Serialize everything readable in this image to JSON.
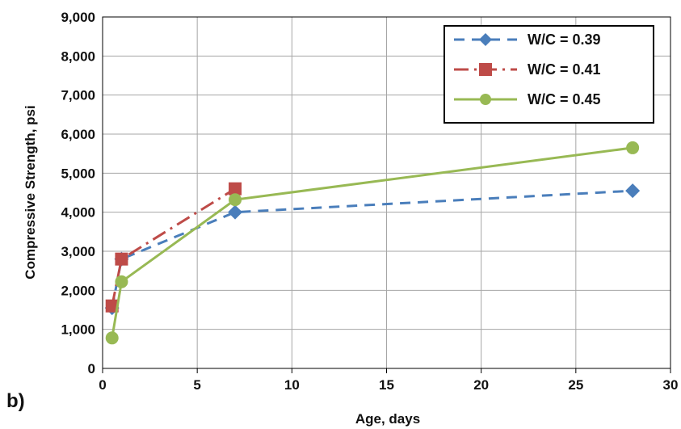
{
  "chart_data": {
    "type": "line",
    "panel_label": "b)",
    "xlabel": "Age, days",
    "ylabel": "Compressive Strength, psi",
    "xlim": [
      0,
      30
    ],
    "ylim": [
      0,
      9000
    ],
    "x_ticks": [
      {
        "value": 0,
        "label": "0"
      },
      {
        "value": 5,
        "label": "5"
      },
      {
        "value": 10,
        "label": "10"
      },
      {
        "value": 15,
        "label": "15"
      },
      {
        "value": 20,
        "label": "20"
      },
      {
        "value": 25,
        "label": "25"
      },
      {
        "value": 30,
        "label": "30"
      }
    ],
    "y_ticks": [
      {
        "value": 0,
        "label": "0"
      },
      {
        "value": 1000,
        "label": "1,000"
      },
      {
        "value": 2000,
        "label": "2,000"
      },
      {
        "value": 3000,
        "label": "3,000"
      },
      {
        "value": 4000,
        "label": "4,000"
      },
      {
        "value": 5000,
        "label": "5,000"
      },
      {
        "value": 6000,
        "label": "6,000"
      },
      {
        "value": 7000,
        "label": "7,000"
      },
      {
        "value": 8000,
        "label": "8,000"
      },
      {
        "value": 9000,
        "label": "9,000"
      }
    ],
    "grid": true,
    "legend_position": "top-right",
    "series": [
      {
        "name": "W/C = 0.39",
        "color": "#4a7ebb",
        "line_style": "dashed",
        "marker": "diamond",
        "points": [
          [
            0.5,
            1550
          ],
          [
            1,
            2800
          ],
          [
            7,
            4000
          ],
          [
            28,
            4550
          ]
        ]
      },
      {
        "name": "W/C = 0.41",
        "color": "#be4b48",
        "line_style": "dash-dot",
        "marker": "square",
        "points": [
          [
            0.5,
            1600
          ],
          [
            1,
            2800
          ],
          [
            7,
            4600
          ]
        ]
      },
      {
        "name": "W/C = 0.45",
        "color": "#98b954",
        "line_style": "solid",
        "marker": "circle",
        "points": [
          [
            0.5,
            780
          ],
          [
            1,
            2220
          ],
          [
            7,
            4320
          ],
          [
            28,
            5650
          ]
        ]
      }
    ]
  }
}
